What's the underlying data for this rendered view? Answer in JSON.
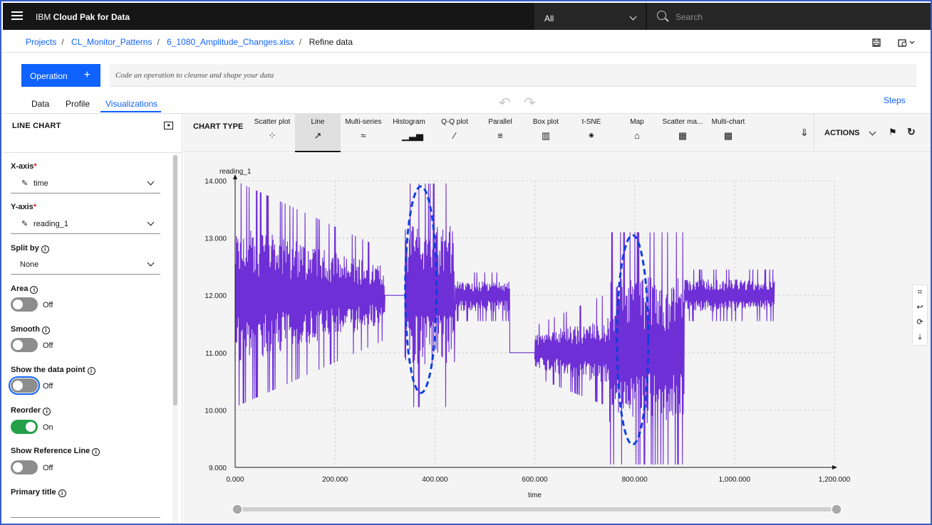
{
  "app": {
    "brand_prefix": "IBM ",
    "brand_bold": "Cloud Pak for Data"
  },
  "search": {
    "scope": "All",
    "placeholder": "Search"
  },
  "breadcrumb": [
    {
      "label": "Projects",
      "link": true
    },
    {
      "label": "CL_Monitor_Patterns",
      "link": true
    },
    {
      "label": "6_1080_Amplitude_Changes.xlsx",
      "link": true
    },
    {
      "label": "Refine data",
      "link": false
    }
  ],
  "operation": {
    "button_label": "Operation",
    "plus": "+",
    "code_placeholder": "Code an operation to cleanse and shape your data"
  },
  "tabs": [
    {
      "label": "Data"
    },
    {
      "label": "Profile"
    },
    {
      "label": "Visualizations",
      "active": true
    }
  ],
  "steps_label": "Steps",
  "left_panel": {
    "title": "LINE CHART",
    "x_axis": {
      "label": "X-axis",
      "required": "*",
      "value": "time"
    },
    "y_axis": {
      "label": "Y-axis",
      "required": "*",
      "value": "reading_1"
    },
    "split_by": {
      "label": "Split by",
      "value": "None"
    },
    "toggles": [
      {
        "label": "Area",
        "state": "Off",
        "on": false
      },
      {
        "label": "Smooth",
        "state": "Off",
        "on": false
      },
      {
        "label": "Show the data point",
        "state": "Off",
        "on": false
      },
      {
        "label": "Reorder",
        "state": "On",
        "on": true
      },
      {
        "label": "Show Reference Line",
        "state": "Off",
        "on": false
      }
    ],
    "primary_title": {
      "label": "Primary title"
    }
  },
  "chart_type": {
    "title": "CHART TYPE",
    "items": [
      {
        "label": "Scatter plot",
        "icon": "scatter-plot-icon"
      },
      {
        "label": "Line",
        "icon": "line-chart-icon",
        "selected": true
      },
      {
        "label": "Multi-series",
        "icon": "multi-series-icon"
      },
      {
        "label": "Histogram",
        "icon": "histogram-icon"
      },
      {
        "label": "Q-Q plot",
        "icon": "qq-plot-icon"
      },
      {
        "label": "Parallel",
        "icon": "parallel-icon"
      },
      {
        "label": "Box plot",
        "icon": "box-plot-icon"
      },
      {
        "label": "t-SNE",
        "icon": "tsne-icon"
      },
      {
        "label": "Map",
        "icon": "map-icon"
      },
      {
        "label": "Scatter ma...",
        "icon": "scatter-matrix-icon"
      },
      {
        "label": "Multi-chart",
        "icon": "multi-chart-icon"
      }
    ],
    "actions_label": "ACTIONS"
  },
  "chart_data": {
    "type": "line",
    "ylabel": "reading_1",
    "xlabel": "time",
    "xlim": [
      0,
      1200
    ],
    "ylim": [
      9,
      14
    ],
    "x_ticks": [
      "0.000",
      "200.000",
      "400.000",
      "600.000",
      "800.000",
      "1,000.000",
      "1,200.000"
    ],
    "y_ticks": [
      "9.000",
      "10.000",
      "11.000",
      "12.000",
      "13.000",
      "14.000"
    ],
    "grid": true,
    "line_color": "#6f2fd6",
    "segments": [
      {
        "x_start": 0,
        "x_end": 300,
        "center": 12.0,
        "amplitude": "high, decaying",
        "range": [
          10.05,
          14.0
        ]
      },
      {
        "x_start": 300,
        "x_end": 340,
        "center": 12.0,
        "amplitude": "flat",
        "range": [
          12.0,
          12.0
        ]
      },
      {
        "x_start": 340,
        "x_end": 440,
        "center": 12.0,
        "amplitude": "very high",
        "range": [
          10.05,
          13.95
        ]
      },
      {
        "x_start": 440,
        "x_end": 550,
        "center": 12.0,
        "amplitude": "low",
        "range": [
          11.55,
          12.4
        ]
      },
      {
        "x_start": 550,
        "x_end": 600,
        "center": 11.0,
        "amplitude": "flat",
        "range": [
          11.0,
          11.0
        ]
      },
      {
        "x_start": 600,
        "x_end": 750,
        "center": 11.0,
        "amplitude": "low, increasing",
        "range": [
          10.05,
          12.05
        ]
      },
      {
        "x_start": 750,
        "x_end": 900,
        "center": 11.0,
        "amplitude": "very high",
        "range": [
          9.05,
          13.1
        ]
      },
      {
        "x_start": 900,
        "x_end": 1080,
        "center": 12.0,
        "amplitude": "low",
        "range": [
          11.55,
          12.45
        ]
      }
    ],
    "annotations": [
      {
        "shape": "dashed-ellipse",
        "color": "#0f3fe0",
        "x_center": 372,
        "y_range": [
          10.3,
          13.9
        ]
      },
      {
        "shape": "dashed-ellipse",
        "color": "#0f3fe0",
        "x_center": 796,
        "y_range": [
          9.4,
          13.05
        ]
      }
    ]
  }
}
